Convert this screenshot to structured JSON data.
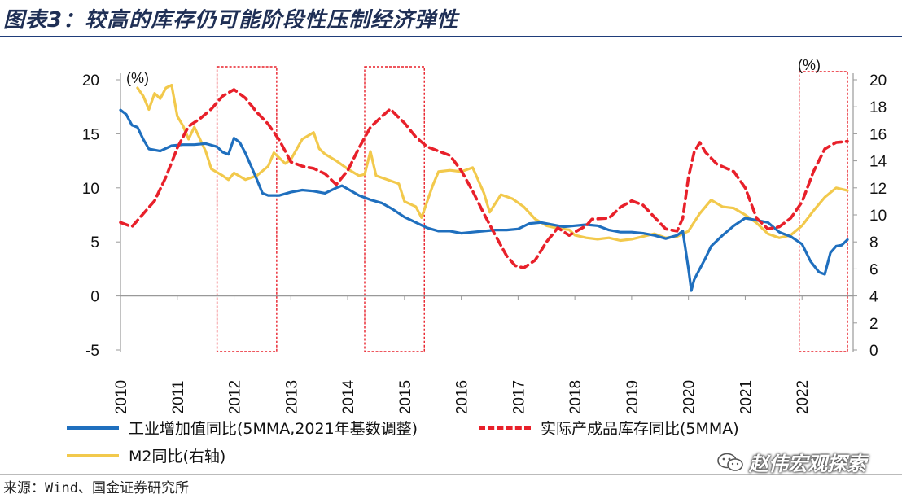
{
  "page": {
    "title": "图表3：较高的库存仍可能阶段性压制经济弹性",
    "source": "来源：Wind、国金证券研究所",
    "watermark": "赵伟宏观探索"
  },
  "colors": {
    "industrial": "#1f6fbe",
    "inventory": "#e8202a",
    "m2": "#f2c94c",
    "highlight_box": "#e8202a",
    "title": "#1f2f55"
  },
  "chart_data": {
    "type": "line",
    "left_axis": {
      "unit": "(%)",
      "ylim": [
        -5,
        20
      ],
      "ticks": [
        -5,
        0,
        5,
        10,
        15,
        20
      ]
    },
    "right_axis": {
      "unit": "(%)",
      "ylim": [
        0,
        20
      ],
      "ticks": [
        0,
        2,
        4,
        6,
        8,
        10,
        12,
        14,
        16,
        18,
        20
      ]
    },
    "x_axis": {
      "range": [
        2010,
        2022.9
      ],
      "tick_labels": [
        "2010",
        "2011",
        "2012",
        "2013",
        "2014",
        "2015",
        "2016",
        "2017",
        "2018",
        "2019",
        "2020",
        "2021",
        "2022"
      ]
    },
    "highlight_periods": [
      [
        2011.7,
        2012.75
      ],
      [
        2014.3,
        2015.35
      ],
      [
        2021.95,
        2022.8
      ]
    ],
    "series": [
      {
        "name": "工业增加值同比(5MMA,2021年基数调整)",
        "axis": "left",
        "style": "solid",
        "points": [
          [
            2010.0,
            17.2
          ],
          [
            2010.1,
            16.8
          ],
          [
            2010.2,
            15.8
          ],
          [
            2010.3,
            15.6
          ],
          [
            2010.4,
            14.5
          ],
          [
            2010.5,
            13.6
          ],
          [
            2010.7,
            13.4
          ],
          [
            2010.9,
            13.9
          ],
          [
            2011.1,
            14.0
          ],
          [
            2011.3,
            14.0
          ],
          [
            2011.5,
            14.1
          ],
          [
            2011.7,
            13.8
          ],
          [
            2011.8,
            13.3
          ],
          [
            2011.9,
            13.1
          ],
          [
            2012.0,
            14.6
          ],
          [
            2012.1,
            14.2
          ],
          [
            2012.2,
            13.2
          ],
          [
            2012.3,
            12.0
          ],
          [
            2012.4,
            10.8
          ],
          [
            2012.5,
            9.5
          ],
          [
            2012.6,
            9.3
          ],
          [
            2012.8,
            9.3
          ],
          [
            2013.0,
            9.6
          ],
          [
            2013.2,
            9.8
          ],
          [
            2013.4,
            9.7
          ],
          [
            2013.6,
            9.5
          ],
          [
            2013.8,
            10.0
          ],
          [
            2013.9,
            10.2
          ],
          [
            2014.0,
            9.9
          ],
          [
            2014.2,
            9.3
          ],
          [
            2014.4,
            8.9
          ],
          [
            2014.6,
            8.6
          ],
          [
            2014.8,
            8.0
          ],
          [
            2015.0,
            7.3
          ],
          [
            2015.2,
            6.8
          ],
          [
            2015.4,
            6.3
          ],
          [
            2015.6,
            6.0
          ],
          [
            2015.8,
            6.0
          ],
          [
            2016.0,
            5.8
          ],
          [
            2016.2,
            5.9
          ],
          [
            2016.4,
            6.0
          ],
          [
            2016.6,
            6.1
          ],
          [
            2016.8,
            6.1
          ],
          [
            2017.0,
            6.2
          ],
          [
            2017.2,
            6.7
          ],
          [
            2017.4,
            6.8
          ],
          [
            2017.6,
            6.6
          ],
          [
            2017.8,
            6.4
          ],
          [
            2018.0,
            6.5
          ],
          [
            2018.2,
            6.6
          ],
          [
            2018.4,
            6.5
          ],
          [
            2018.6,
            6.1
          ],
          [
            2018.8,
            5.9
          ],
          [
            2019.0,
            5.9
          ],
          [
            2019.2,
            5.8
          ],
          [
            2019.4,
            5.6
          ],
          [
            2019.6,
            5.3
          ],
          [
            2019.8,
            5.6
          ],
          [
            2019.9,
            6.0
          ],
          [
            2020.0,
            2.5
          ],
          [
            2020.05,
            0.5
          ],
          [
            2020.1,
            1.5
          ],
          [
            2020.2,
            2.5
          ],
          [
            2020.3,
            3.5
          ],
          [
            2020.4,
            4.6
          ],
          [
            2020.6,
            5.6
          ],
          [
            2020.8,
            6.5
          ],
          [
            2021.0,
            7.2
          ],
          [
            2021.2,
            7.0
          ],
          [
            2021.4,
            6.8
          ],
          [
            2021.6,
            5.9
          ],
          [
            2021.8,
            5.5
          ],
          [
            2022.0,
            4.8
          ],
          [
            2022.15,
            3.2
          ],
          [
            2022.3,
            2.2
          ],
          [
            2022.4,
            2.0
          ],
          [
            2022.5,
            4.0
          ],
          [
            2022.6,
            4.6
          ],
          [
            2022.7,
            4.7
          ],
          [
            2022.8,
            5.2
          ]
        ]
      },
      {
        "name": "实际产成品库存同比(5MMA)",
        "axis": "left",
        "style": "dashed",
        "points": [
          [
            2010.0,
            6.8
          ],
          [
            2010.2,
            6.4
          ],
          [
            2010.4,
            7.6
          ],
          [
            2010.6,
            8.8
          ],
          [
            2010.8,
            11.0
          ],
          [
            2011.0,
            13.7
          ],
          [
            2011.2,
            15.7
          ],
          [
            2011.4,
            16.4
          ],
          [
            2011.6,
            17.3
          ],
          [
            2011.8,
            18.5
          ],
          [
            2012.0,
            19.1
          ],
          [
            2012.2,
            18.3
          ],
          [
            2012.4,
            17.0
          ],
          [
            2012.6,
            15.9
          ],
          [
            2012.8,
            14.4
          ],
          [
            2013.0,
            12.4
          ],
          [
            2013.2,
            12.0
          ],
          [
            2013.4,
            11.8
          ],
          [
            2013.6,
            11.3
          ],
          [
            2013.8,
            10.3
          ],
          [
            2014.0,
            11.6
          ],
          [
            2014.2,
            13.7
          ],
          [
            2014.4,
            15.6
          ],
          [
            2014.6,
            16.6
          ],
          [
            2014.75,
            17.3
          ],
          [
            2014.9,
            16.5
          ],
          [
            2015.0,
            16.0
          ],
          [
            2015.2,
            14.7
          ],
          [
            2015.4,
            13.8
          ],
          [
            2015.6,
            13.4
          ],
          [
            2015.8,
            13.0
          ],
          [
            2016.0,
            11.6
          ],
          [
            2016.2,
            9.7
          ],
          [
            2016.4,
            7.6
          ],
          [
            2016.6,
            5.6
          ],
          [
            2016.8,
            3.7
          ],
          [
            2016.95,
            2.8
          ],
          [
            2017.1,
            2.6
          ],
          [
            2017.3,
            3.3
          ],
          [
            2017.5,
            5.0
          ],
          [
            2017.7,
            6.3
          ],
          [
            2017.9,
            5.6
          ],
          [
            2018.0,
            5.9
          ],
          [
            2018.2,
            6.5
          ],
          [
            2018.3,
            7.1
          ],
          [
            2018.6,
            7.2
          ],
          [
            2018.8,
            8.2
          ],
          [
            2019.0,
            8.8
          ],
          [
            2019.2,
            8.4
          ],
          [
            2019.4,
            7.3
          ],
          [
            2019.6,
            6.2
          ],
          [
            2019.8,
            6.0
          ],
          [
            2019.9,
            7.2
          ],
          [
            2020.0,
            11.0
          ],
          [
            2020.1,
            13.3
          ],
          [
            2020.2,
            14.2
          ],
          [
            2020.3,
            13.3
          ],
          [
            2020.5,
            12.2
          ],
          [
            2020.8,
            11.5
          ],
          [
            2021.0,
            10.0
          ],
          [
            2021.2,
            7.2
          ],
          [
            2021.4,
            6.2
          ],
          [
            2021.6,
            6.4
          ],
          [
            2021.8,
            7.2
          ],
          [
            2022.0,
            8.7
          ],
          [
            2022.2,
            11.5
          ],
          [
            2022.4,
            13.6
          ],
          [
            2022.6,
            14.2
          ],
          [
            2022.8,
            14.3
          ]
        ]
      },
      {
        "name": "M2同比(右轴)",
        "axis": "right",
        "style": "solid",
        "points": [
          [
            2010.3,
            19.4
          ],
          [
            2010.4,
            18.8
          ],
          [
            2010.5,
            17.8
          ],
          [
            2010.6,
            19.0
          ],
          [
            2010.7,
            18.6
          ],
          [
            2010.8,
            19.4
          ],
          [
            2010.9,
            19.6
          ],
          [
            2011.0,
            17.3
          ],
          [
            2011.1,
            16.6
          ],
          [
            2011.2,
            15.6
          ],
          [
            2011.3,
            16.5
          ],
          [
            2011.4,
            15.6
          ],
          [
            2011.5,
            14.7
          ],
          [
            2011.6,
            13.4
          ],
          [
            2011.8,
            12.9
          ],
          [
            2011.9,
            12.6
          ],
          [
            2012.0,
            13.1
          ],
          [
            2012.2,
            12.6
          ],
          [
            2012.4,
            12.9
          ],
          [
            2012.6,
            13.6
          ],
          [
            2012.7,
            14.6
          ],
          [
            2012.9,
            13.8
          ],
          [
            2013.0,
            14.1
          ],
          [
            2013.2,
            15.6
          ],
          [
            2013.4,
            16.1
          ],
          [
            2013.5,
            14.9
          ],
          [
            2013.6,
            14.5
          ],
          [
            2013.8,
            14.0
          ],
          [
            2014.0,
            13.4
          ],
          [
            2014.2,
            12.9
          ],
          [
            2014.3,
            13.0
          ],
          [
            2014.4,
            14.7
          ],
          [
            2014.5,
            12.9
          ],
          [
            2014.7,
            12.6
          ],
          [
            2014.9,
            12.3
          ],
          [
            2015.0,
            11.0
          ],
          [
            2015.2,
            10.6
          ],
          [
            2015.3,
            9.8
          ],
          [
            2015.5,
            12.2
          ],
          [
            2015.6,
            13.2
          ],
          [
            2015.8,
            13.3
          ],
          [
            2016.0,
            13.2
          ],
          [
            2016.2,
            13.5
          ],
          [
            2016.4,
            11.6
          ],
          [
            2016.5,
            10.2
          ],
          [
            2016.7,
            11.5
          ],
          [
            2016.9,
            11.2
          ],
          [
            2017.1,
            10.6
          ],
          [
            2017.3,
            9.7
          ],
          [
            2017.5,
            9.2
          ],
          [
            2017.7,
            9.0
          ],
          [
            2017.9,
            8.9
          ],
          [
            2018.0,
            8.5
          ],
          [
            2018.2,
            8.3
          ],
          [
            2018.4,
            8.2
          ],
          [
            2018.6,
            8.3
          ],
          [
            2018.8,
            8.1
          ],
          [
            2019.0,
            8.2
          ],
          [
            2019.2,
            8.4
          ],
          [
            2019.4,
            8.6
          ],
          [
            2019.6,
            8.3
          ],
          [
            2019.8,
            8.4
          ],
          [
            2020.0,
            8.8
          ],
          [
            2020.2,
            10.1
          ],
          [
            2020.4,
            11.1
          ],
          [
            2020.6,
            10.6
          ],
          [
            2020.8,
            10.5
          ],
          [
            2021.0,
            10.0
          ],
          [
            2021.2,
            9.4
          ],
          [
            2021.4,
            8.6
          ],
          [
            2021.6,
            8.3
          ],
          [
            2021.8,
            8.5
          ],
          [
            2022.0,
            9.2
          ],
          [
            2022.2,
            10.3
          ],
          [
            2022.4,
            11.3
          ],
          [
            2022.6,
            12.0
          ],
          [
            2022.8,
            11.8
          ]
        ]
      }
    ]
  }
}
